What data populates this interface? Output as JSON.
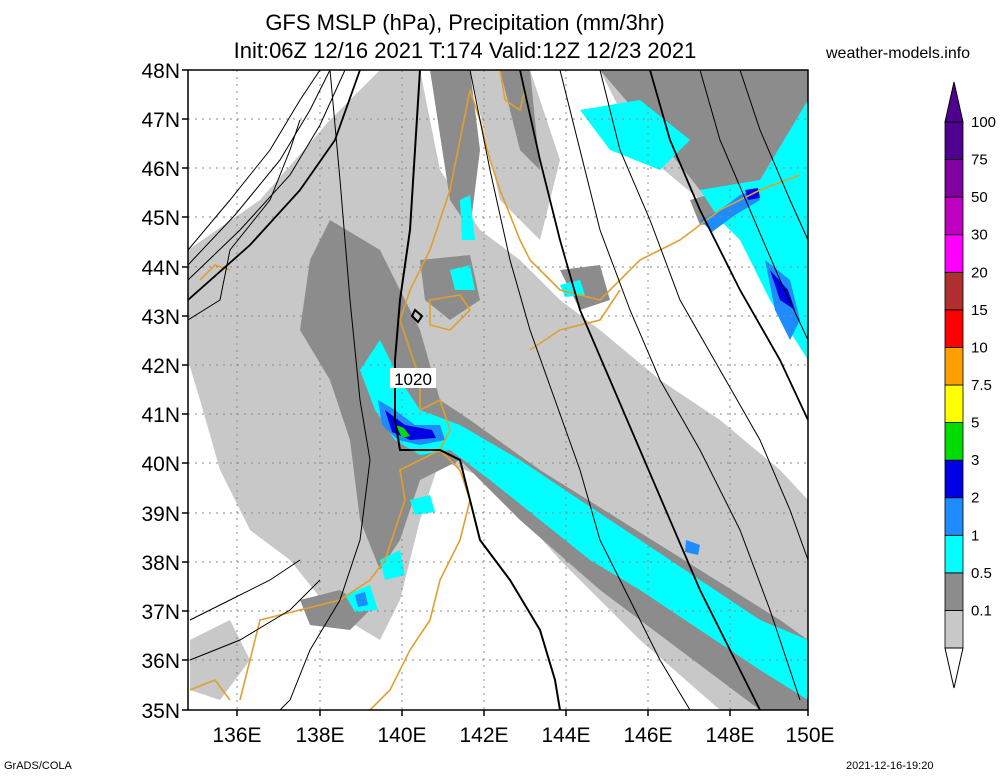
{
  "header": {
    "title": "GFS MSLP (hPa), Precipitation (mm/3hr)",
    "subtitle": "Init:06Z 12/16 2021 T:174 Valid:12Z 12/23 2021",
    "site": "weather-models.info"
  },
  "footer": {
    "software": "GrADS/COLA",
    "timestamp": "2021-12-16-19:20"
  },
  "map": {
    "lat_labels": [
      "48N",
      "47N",
      "46N",
      "45N",
      "44N",
      "43N",
      "42N",
      "41N",
      "40N",
      "39N",
      "38N",
      "37N",
      "36N",
      "35N"
    ],
    "lon_labels": [
      "136E",
      "138E",
      "140E",
      "142E",
      "144E",
      "146E",
      "148E",
      "150E"
    ],
    "isobar_label": "1020",
    "coastline_color": "#e0a030"
  },
  "legend": {
    "labels": [
      "100",
      "75",
      "50",
      "30",
      "20",
      "15",
      "10",
      "7.5",
      "5",
      "3",
      "2",
      "1",
      "0.5",
      "0.1"
    ],
    "colors": [
      "#c8c8c8",
      "#8c8c8c",
      "#00ffff",
      "#1e8cff",
      "#0000e6",
      "#00dc00",
      "#ffff00",
      "#ffa000",
      "#ff0000",
      "#b03030",
      "#ff00ff",
      "#c000c0",
      "#8000a0",
      "#500090"
    ]
  }
}
